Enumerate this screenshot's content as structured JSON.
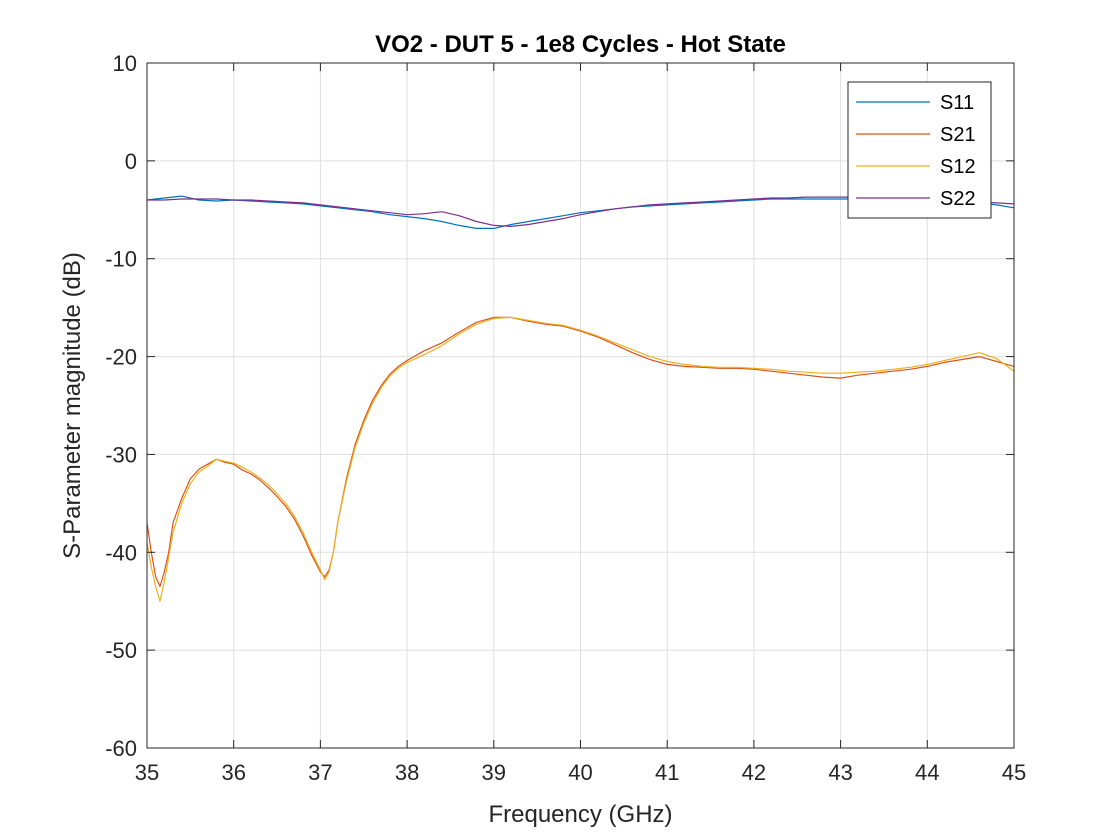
{
  "chart_data": {
    "type": "line",
    "title": "VO2 - DUT 5 - 1e8 Cycles - Hot State",
    "xlabel": "Frequency (GHz)",
    "ylabel": "S-Parameter magnitude (dB)",
    "xlim": [
      35,
      45
    ],
    "ylim": [
      -60,
      10
    ],
    "xticks": [
      35,
      36,
      37,
      38,
      39,
      40,
      41,
      42,
      43,
      44,
      45
    ],
    "yticks": [
      -60,
      -50,
      -40,
      -30,
      -20,
      -10,
      0,
      10
    ],
    "xtick_labels": [
      "35",
      "36",
      "37",
      "38",
      "39",
      "40",
      "41",
      "42",
      "43",
      "44",
      "45"
    ],
    "ytick_labels": [
      "-60",
      "-50",
      "-40",
      "-30",
      "-20",
      "-10",
      "0",
      "10"
    ],
    "grid": true,
    "legend_position": "top-right",
    "series": [
      {
        "name": "S11",
        "color": "#0072BD",
        "x": [
          35.0,
          35.2,
          35.4,
          35.6,
          35.8,
          36.0,
          36.2,
          36.4,
          36.6,
          36.8,
          37.0,
          37.2,
          37.4,
          37.6,
          37.8,
          38.0,
          38.2,
          38.4,
          38.6,
          38.8,
          39.0,
          39.2,
          39.4,
          39.6,
          39.8,
          40.0,
          40.2,
          40.4,
          40.6,
          40.8,
          41.0,
          41.2,
          41.4,
          41.6,
          41.8,
          42.0,
          42.2,
          42.4,
          42.6,
          42.8,
          43.0,
          43.2,
          43.4,
          43.6,
          43.8,
          44.0,
          44.2,
          44.4,
          44.6,
          44.8,
          45.0
        ],
        "y": [
          -4.0,
          -3.8,
          -3.6,
          -4.0,
          -4.1,
          -4.0,
          -4.1,
          -4.2,
          -4.3,
          -4.4,
          -4.6,
          -4.8,
          -5.0,
          -5.2,
          -5.5,
          -5.7,
          -5.9,
          -6.2,
          -6.6,
          -6.9,
          -6.9,
          -6.5,
          -6.2,
          -5.9,
          -5.6,
          -5.3,
          -5.1,
          -4.9,
          -4.7,
          -4.6,
          -4.5,
          -4.4,
          -4.3,
          -4.2,
          -4.1,
          -4.0,
          -3.9,
          -3.9,
          -3.9,
          -3.9,
          -3.9,
          -3.9,
          -3.9,
          -3.9,
          -3.9,
          -4.0,
          -4.1,
          -4.2,
          -4.3,
          -4.5,
          -4.8
        ]
      },
      {
        "name": "S21",
        "color": "#D95319",
        "x": [
          35.0,
          35.05,
          35.1,
          35.15,
          35.2,
          35.25,
          35.3,
          35.4,
          35.5,
          35.6,
          35.7,
          35.8,
          35.9,
          36.0,
          36.1,
          36.2,
          36.3,
          36.4,
          36.5,
          36.6,
          36.7,
          36.8,
          36.9,
          37.0,
          37.05,
          37.1,
          37.15,
          37.2,
          37.3,
          37.4,
          37.5,
          37.6,
          37.7,
          37.8,
          37.9,
          38.0,
          38.2,
          38.4,
          38.6,
          38.8,
          39.0,
          39.2,
          39.4,
          39.6,
          39.8,
          40.0,
          40.2,
          40.4,
          40.6,
          40.8,
          41.0,
          41.2,
          41.4,
          41.6,
          41.8,
          42.0,
          42.2,
          42.4,
          42.6,
          42.8,
          43.0,
          43.2,
          43.4,
          43.6,
          43.8,
          44.0,
          44.2,
          44.4,
          44.6,
          44.8,
          45.0
        ],
        "y": [
          -37.0,
          -40.0,
          -42.5,
          -43.5,
          -42.0,
          -40.0,
          -37.0,
          -34.5,
          -32.5,
          -31.5,
          -31.0,
          -30.5,
          -30.8,
          -31.0,
          -31.6,
          -32.0,
          -32.6,
          -33.4,
          -34.3,
          -35.3,
          -36.6,
          -38.3,
          -40.3,
          -42.0,
          -42.5,
          -41.8,
          -40.0,
          -37.0,
          -32.5,
          -29.0,
          -26.5,
          -24.5,
          -23.0,
          -21.8,
          -21.0,
          -20.4,
          -19.4,
          -18.6,
          -17.5,
          -16.5,
          -16.0,
          -16.0,
          -16.4,
          -16.7,
          -16.9,
          -17.4,
          -18.0,
          -18.8,
          -19.6,
          -20.3,
          -20.8,
          -21.0,
          -21.1,
          -21.2,
          -21.2,
          -21.3,
          -21.5,
          -21.7,
          -21.9,
          -22.1,
          -22.2,
          -21.9,
          -21.7,
          -21.5,
          -21.3,
          -21.0,
          -20.6,
          -20.3,
          -20.0,
          -20.5,
          -21.0
        ]
      },
      {
        "name": "S12",
        "color": "#EDB120",
        "x": [
          35.0,
          35.05,
          35.1,
          35.15,
          35.2,
          35.25,
          35.3,
          35.4,
          35.5,
          35.6,
          35.7,
          35.8,
          35.9,
          36.0,
          36.1,
          36.2,
          36.3,
          36.4,
          36.5,
          36.6,
          36.7,
          36.8,
          36.9,
          37.0,
          37.05,
          37.1,
          37.15,
          37.2,
          37.3,
          37.4,
          37.5,
          37.6,
          37.7,
          37.8,
          37.9,
          38.0,
          38.2,
          38.4,
          38.6,
          38.8,
          39.0,
          39.2,
          39.4,
          39.6,
          39.8,
          40.0,
          40.2,
          40.4,
          40.6,
          40.8,
          41.0,
          41.2,
          41.4,
          41.6,
          41.8,
          42.0,
          42.2,
          42.4,
          42.6,
          42.8,
          43.0,
          43.2,
          43.4,
          43.6,
          43.8,
          44.0,
          44.2,
          44.4,
          44.6,
          44.8,
          45.0
        ],
        "y": [
          -39.0,
          -41.5,
          -43.5,
          -45.0,
          -43.0,
          -40.5,
          -38.0,
          -35.0,
          -33.0,
          -31.8,
          -31.2,
          -30.5,
          -30.7,
          -30.9,
          -31.3,
          -31.8,
          -32.4,
          -33.1,
          -34.0,
          -35.0,
          -36.3,
          -38.0,
          -40.0,
          -41.8,
          -42.8,
          -42.0,
          -40.0,
          -37.0,
          -32.8,
          -29.3,
          -26.8,
          -24.8,
          -23.2,
          -22.0,
          -21.2,
          -20.6,
          -19.8,
          -18.9,
          -17.7,
          -16.7,
          -16.1,
          -16.0,
          -16.3,
          -16.6,
          -16.8,
          -17.3,
          -17.9,
          -18.6,
          -19.3,
          -20.0,
          -20.5,
          -20.8,
          -21.0,
          -21.1,
          -21.1,
          -21.2,
          -21.3,
          -21.5,
          -21.6,
          -21.7,
          -21.7,
          -21.6,
          -21.5,
          -21.3,
          -21.1,
          -20.8,
          -20.4,
          -20.0,
          -19.6,
          -20.2,
          -21.5
        ]
      },
      {
        "name": "S22",
        "color": "#7E2F8E",
        "x": [
          35.0,
          35.2,
          35.4,
          35.6,
          35.8,
          36.0,
          36.2,
          36.4,
          36.6,
          36.8,
          37.0,
          37.2,
          37.4,
          37.6,
          37.8,
          38.0,
          38.2,
          38.4,
          38.6,
          38.8,
          39.0,
          39.2,
          39.4,
          39.6,
          39.8,
          40.0,
          40.2,
          40.4,
          40.6,
          40.8,
          41.0,
          41.2,
          41.4,
          41.6,
          41.8,
          42.0,
          42.2,
          42.4,
          42.6,
          42.8,
          43.0,
          43.2,
          43.4,
          43.6,
          43.8,
          44.0,
          44.2,
          44.4,
          44.6,
          44.8,
          45.0
        ],
        "y": [
          -4.0,
          -4.0,
          -3.9,
          -3.9,
          -3.9,
          -4.0,
          -4.0,
          -4.1,
          -4.2,
          -4.3,
          -4.5,
          -4.7,
          -4.9,
          -5.1,
          -5.3,
          -5.5,
          -5.4,
          -5.2,
          -5.6,
          -6.2,
          -6.6,
          -6.7,
          -6.5,
          -6.2,
          -5.9,
          -5.5,
          -5.2,
          -4.9,
          -4.7,
          -4.5,
          -4.4,
          -4.3,
          -4.2,
          -4.1,
          -4.0,
          -3.9,
          -3.8,
          -3.8,
          -3.7,
          -3.7,
          -3.7,
          -3.7,
          -3.7,
          -3.8,
          -3.8,
          -3.9,
          -4.0,
          -4.1,
          -4.2,
          -4.3,
          -4.4
        ]
      }
    ]
  }
}
